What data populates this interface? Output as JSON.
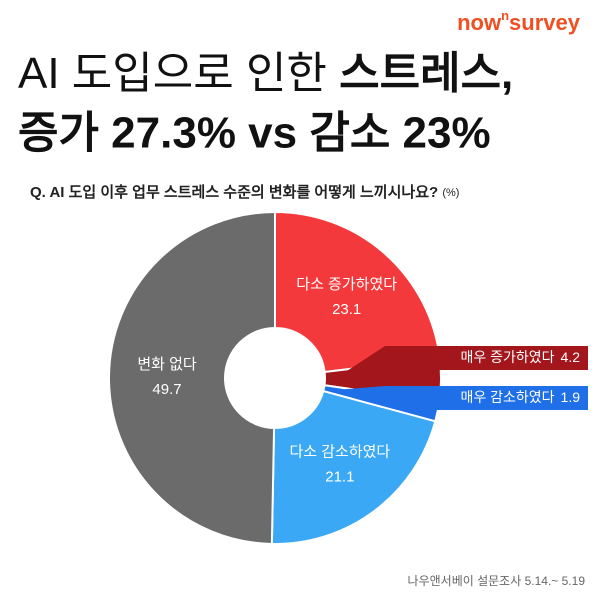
{
  "brand": {
    "pre": "now",
    "sup": "n",
    "post": "survey"
  },
  "title": {
    "line1": [
      "AI 도입으로 인한",
      "스트레스,"
    ],
    "line2": "증가 27.3% vs  감소 23%"
  },
  "question": {
    "text": "Q. AI 도입 이후 업무 스트레스 수준의 변화를 어떻게 느끼시나요?",
    "unit": "(%)"
  },
  "chart_data": {
    "type": "donut",
    "categories": [
      "다소 증가하였다",
      "매우 증가하였다",
      "매우 감소하였다",
      "다소 감소하였다",
      "변화 없다"
    ],
    "values": [
      23.1,
      4.2,
      1.9,
      21.1,
      49.7
    ],
    "colors": [
      "#f4393c",
      "#a3161c",
      "#1f6fe8",
      "#3aa8f5",
      "#6b6b6b"
    ]
  },
  "source": "나우앤서베이 설문조사 5.14.~ 5.19"
}
